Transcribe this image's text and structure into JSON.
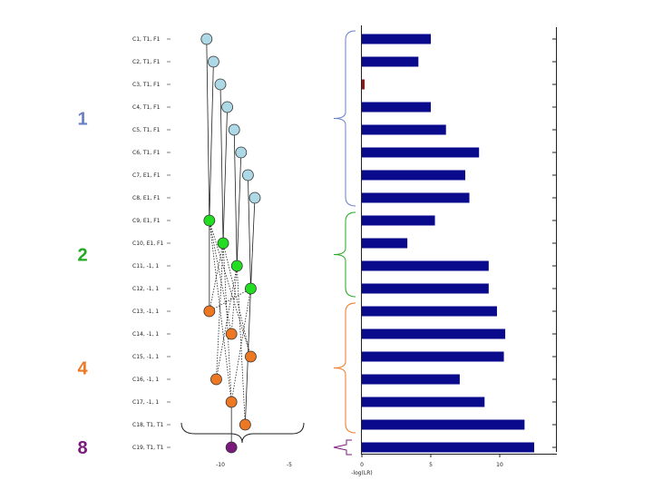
{
  "chart_data": {
    "type": "bar",
    "title": "",
    "xlabel": "-log(LR)",
    "ylabel": "",
    "xlim": [
      0,
      13.5
    ],
    "ticks": [
      {
        "value": 0,
        "label": "0"
      },
      {
        "value": 5,
        "label": "5"
      },
      {
        "value": 10,
        "label": "10"
      }
    ],
    "categories": [
      "C1, T1, F1",
      "C2, T1, F1",
      "C3, T1, F1",
      "C4, T1, F1",
      "C5, T1, F1",
      "C6, T1, F1",
      "C7, E1, F1",
      "C8, E1, F1",
      "C9, E1, F1",
      "C10, E1, F1",
      "C11, -1, 1",
      "C12, -1, 1",
      "C13, -1, 1",
      "C14, -1, 1",
      "C15, -1, 1",
      "C16, -1, 1",
      "C17, -1, 1",
      "C18, T1, T1",
      "C19, T1, T1"
    ],
    "values": [
      5.0,
      4.1,
      0.2,
      5.0,
      6.1,
      8.5,
      7.5,
      7.8,
      5.3,
      3.3,
      9.2,
      9.2,
      9.8,
      10.4,
      10.3,
      7.1,
      8.9,
      11.8,
      12.5
    ],
    "bar_colors": [
      "#0a0a8c",
      "#0a0a8c",
      "#8b1a1a",
      "#0a0a8c",
      "#0a0a8c",
      "#0a0a8c",
      "#0a0a8c",
      "#0a0a8c",
      "#0a0a8c",
      "#0a0a8c",
      "#0a0a8c",
      "#0a0a8c",
      "#0a0a8c",
      "#0a0a8c",
      "#0a0a8c",
      "#0a0a8c",
      "#0a0a8c",
      "#0a0a8c",
      "#0a0a8c"
    ],
    "lattice": {
      "axis_ticks": [
        {
          "value": -10,
          "label": "-10"
        },
        {
          "value": -5,
          "label": "-5"
        }
      ],
      "xlim": [
        -12.5,
        -3.2
      ],
      "nodes": [
        {
          "row": 0,
          "x": -11.0,
          "color": "#add8e6"
        },
        {
          "row": 1,
          "x": -10.5,
          "color": "#add8e6"
        },
        {
          "row": 2,
          "x": -10.0,
          "color": "#add8e6"
        },
        {
          "row": 3,
          "x": -9.5,
          "color": "#add8e6"
        },
        {
          "row": 4,
          "x": -9.0,
          "color": "#add8e6"
        },
        {
          "row": 5,
          "x": -8.5,
          "color": "#add8e6"
        },
        {
          "row": 6,
          "x": -8.0,
          "color": "#add8e6"
        },
        {
          "row": 7,
          "x": -7.5,
          "color": "#add8e6"
        },
        {
          "row": 8,
          "x": -10.8,
          "color": "#22dd22"
        },
        {
          "row": 9,
          "x": -9.8,
          "color": "#22dd22"
        },
        {
          "row": 10,
          "x": -8.8,
          "color": "#22dd22"
        },
        {
          "row": 11,
          "x": -7.8,
          "color": "#22dd22"
        },
        {
          "row": 12,
          "x": -10.8,
          "color": "#ee7722"
        },
        {
          "row": 13,
          "x": -9.2,
          "color": "#ee7722"
        },
        {
          "row": 14,
          "x": -7.8,
          "color": "#ee7722"
        },
        {
          "row": 15,
          "x": -10.3,
          "color": "#ee7722"
        },
        {
          "row": 16,
          "x": -9.2,
          "color": "#ee7722"
        },
        {
          "row": 17,
          "x": -8.2,
          "color": "#ee7722"
        },
        {
          "row": 18,
          "x": -9.2,
          "color": "#7a1a7a"
        }
      ],
      "edges": [
        {
          "from": 0,
          "to": 8,
          "dashed": false
        },
        {
          "from": 1,
          "to": 8,
          "dashed": false
        },
        {
          "from": 2,
          "to": 9,
          "dashed": false
        },
        {
          "from": 3,
          "to": 9,
          "dashed": false
        },
        {
          "from": 4,
          "to": 10,
          "dashed": false
        },
        {
          "from": 5,
          "to": 10,
          "dashed": false
        },
        {
          "from": 6,
          "to": 11,
          "dashed": false
        },
        {
          "from": 7,
          "to": 11,
          "dashed": false
        },
        {
          "from": 8,
          "to": 12,
          "dashed": false
        },
        {
          "from": 8,
          "to": 13,
          "dashed": true
        },
        {
          "from": 8,
          "to": 14,
          "dashed": true
        },
        {
          "from": 8,
          "to": 16,
          "dashed": true
        },
        {
          "from": 9,
          "to": 12,
          "dashed": true
        },
        {
          "from": 9,
          "to": 14,
          "dashed": true
        },
        {
          "from": 9,
          "to": 15,
          "dashed": true
        },
        {
          "from": 9,
          "to": 16,
          "dashed": true
        },
        {
          "from": 10,
          "to": 13,
          "dashed": true
        },
        {
          "from": 10,
          "to": 15,
          "dashed": true
        },
        {
          "from": 10,
          "to": 17,
          "dashed": true
        },
        {
          "from": 11,
          "to": 12,
          "dashed": true
        },
        {
          "from": 11,
          "to": 16,
          "dashed": true
        },
        {
          "from": 11,
          "to": 17,
          "dashed": false
        },
        {
          "from": 16,
          "to": 18,
          "dashed": false
        }
      ]
    },
    "groups": [
      {
        "label": "1",
        "color": "#6a7fc8",
        "first_row": 0,
        "last_row": 7
      },
      {
        "label": "2",
        "color": "#22aa22",
        "first_row": 8,
        "last_row": 11
      },
      {
        "label": "4",
        "color": "#ee7722",
        "first_row": 12,
        "last_row": 17
      },
      {
        "label": "8",
        "color": "#7a1a7a",
        "first_row": 18,
        "last_row": 18
      }
    ]
  }
}
